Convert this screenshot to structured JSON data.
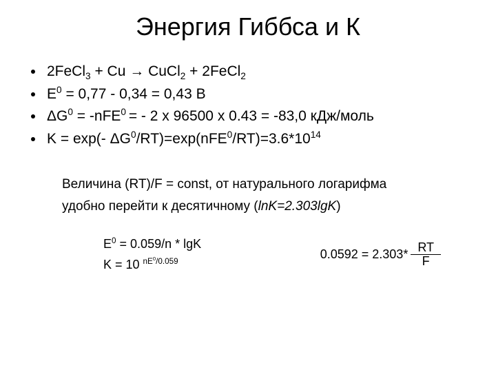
{
  "title": "Энергия Гиббса и К",
  "bullets": {
    "b1": {
      "p0": "2FeCl",
      "s0": "3",
      "p1": " +   Cu   →    CuCl",
      "s1": "2",
      "p2": "    +   2FeCl",
      "s2": "2"
    },
    "b2": {
      "p0": "E",
      "sup0": "0",
      "p1": " = 0,77 - 0,34 = 0,43 B"
    },
    "b3": {
      "p0": "ΔG",
      "sup0": "0",
      "p1": " = -nFE",
      "sup1": "0 ",
      "p2": "= - 2 x 96500 x 0.43 = -83,0 кДж/моль"
    },
    "b4": {
      "p0": "K = exp(- ΔG",
      "sup0": "0",
      "p1": "/RT)=exp(nFE",
      "sup1": "0",
      "p2": "/RT)=3.6*10",
      "sup2": "14"
    }
  },
  "para": {
    "line1": "Величина (RT)/F = const, от натурального логарифма",
    "line2a": "удобно перейти к десятичному (",
    "line2b": "lnK=2.303lgK",
    "line2c": ")"
  },
  "formulas": {
    "e1a": "E",
    "e1sup": "0",
    "e1b": " = 0.059/n * lgK",
    "k1a": "K = 10 ",
    "k1sup_a": "nE",
    "k1sup_sup": "0",
    "k1sup_b": "/0.059",
    "right_prefix": "0.0592 = 2.303*",
    "frac_num": "RT",
    "frac_den": "F"
  }
}
